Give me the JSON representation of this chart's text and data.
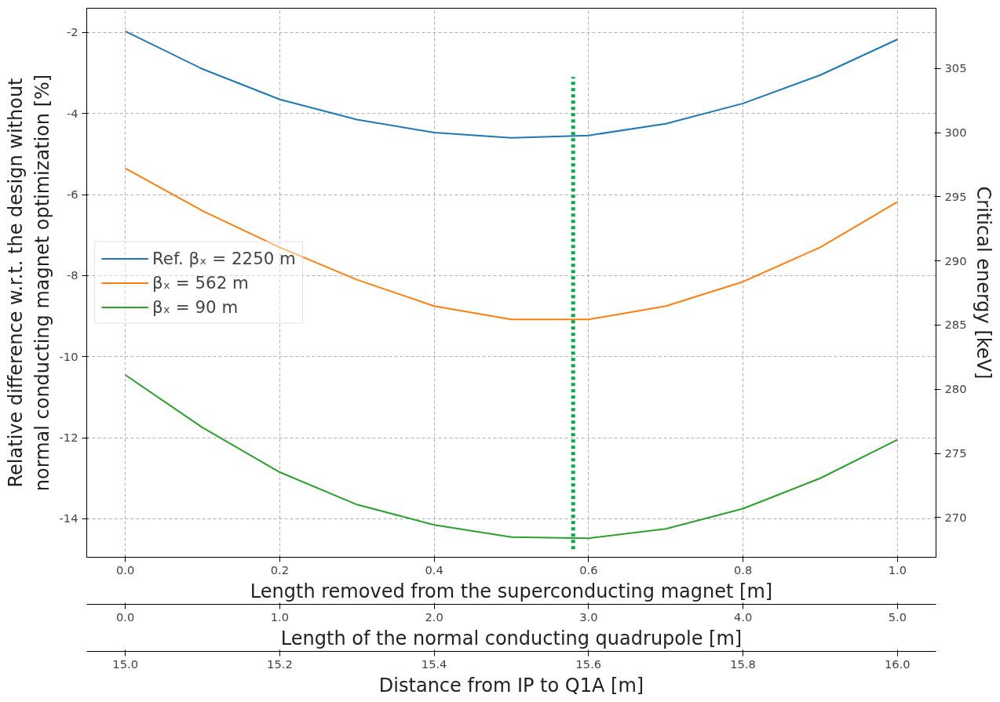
{
  "chart_data": {
    "type": "line",
    "xlabel": "Length removed from the superconducting magnet [m]",
    "ylabel": "Relative difference w.r.t. the design without\nnormal conducting magnet optimization [%]",
    "y2label": "Critical energy [keV]",
    "x2label": "Length of the normal conducting quadrupole [m]",
    "annotations": [
      "Distance from IP to Q1A [m]",
      {
        "text": "15.0",
        "x": 0.0
      },
      {
        "text": "15.2",
        "x": 0.2
      },
      {
        "text": "15.4",
        "x": 0.4
      },
      {
        "text": "15.6",
        "x": 0.6
      },
      {
        "text": "15.8",
        "x": 0.8
      },
      {
        "text": "16.0",
        "x": 1.0
      }
    ],
    "x": [
      0.0,
      0.1,
      0.2,
      0.3,
      0.4,
      0.5,
      0.6,
      0.7,
      0.8,
      0.9,
      1.0
    ],
    "series": [
      {
        "name": "Ref. βₓ = 2250 m",
        "color": "#1f77b4",
        "values": [
          -1.97,
          -2.9,
          -3.65,
          -4.15,
          -4.47,
          -4.6,
          -4.54,
          -4.25,
          -3.75,
          -3.05,
          -2.17
        ]
      },
      {
        "name": "βₓ = 562 m",
        "color": "#ff7f0e",
        "values": [
          -5.35,
          -6.4,
          -7.3,
          -8.1,
          -8.75,
          -9.08,
          -9.08,
          -8.75,
          -8.15,
          -7.3,
          -6.18
        ]
      },
      {
        "name": "βₓ = 90 m",
        "color": "#2ca02c",
        "values": [
          -10.45,
          -11.75,
          -12.85,
          -13.65,
          -14.15,
          -14.45,
          -14.48,
          -14.25,
          -13.75,
          -13.0,
          -12.05
        ]
      },
      {
        "type": "line",
        "color": "#00aa44",
        "line_style": "dotted",
        "x": [
          0.58,
          0.58
        ],
        "values": [
          -14.75,
          -3.1
        ]
      }
    ],
    "xlim": [
      -0.05,
      1.05
    ],
    "xticks": [
      {
        "value": 0,
        "label": "0.0"
      },
      0.2,
      0.4,
      0.6,
      0.8,
      {
        "value": 1,
        "label": "1.0"
      }
    ],
    "ylim": [
      -14.95,
      -1.4
    ],
    "yticks": [
      -14,
      -12,
      -10,
      -8,
      -6,
      -4,
      -2
    ],
    "y2lim": [
      266.9,
      309.7
    ],
    "y2ticks": [
      270,
      275,
      280,
      285,
      290,
      295,
      300,
      305
    ],
    "x2lim": [
      -0.25,
      5.25
    ],
    "x2ticks": [
      {
        "value": 0,
        "label": "0.0"
      },
      {
        "value": 1,
        "label": "1.0"
      },
      {
        "value": 2,
        "label": "2.0"
      },
      {
        "value": 3,
        "label": "3.0"
      },
      {
        "value": 4,
        "label": "4.0"
      },
      {
        "value": 5,
        "label": "5.0"
      }
    ],
    "grid": true,
    "legend": "center left",
    "line_style": "solid"
  }
}
